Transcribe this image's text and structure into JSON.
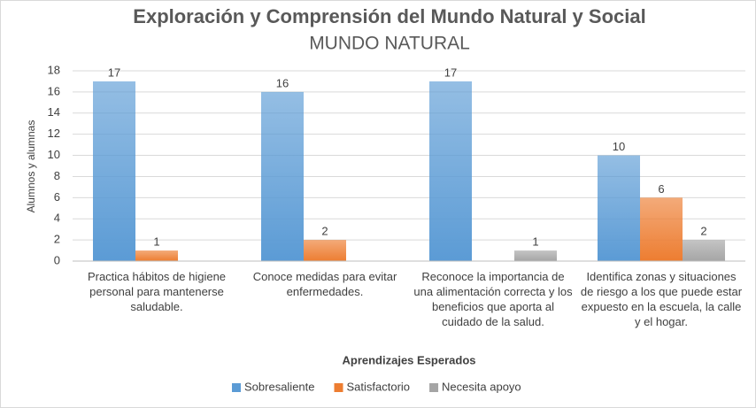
{
  "chart_data": {
    "type": "bar",
    "title": "Exploración y Comprensión del Mundo Natural y Social",
    "subtitle": "MUNDO NATURAL",
    "y_label": "Alumnos y alumnas",
    "x_label": "Aprendizajes Esperados",
    "categories": [
      "Practica hábitos de higiene personal para mantenerse saludable.",
      "Conoce medidas para evitar enfermedades.",
      "Reconoce la importancia de una alimentación correcta y los beneficios que aporta al cuidado de la salud.",
      "Identifica zonas y situaciones de riesgo a los que puede estar expuesto en la escuela, la calle y el hogar."
    ],
    "series": [
      {
        "name": "Sobresaliente",
        "color": "#5b9bd5",
        "values": [
          17,
          16,
          17,
          10
        ]
      },
      {
        "name": "Satisfactorio",
        "color": "#ed7d31",
        "values": [
          1,
          2,
          null,
          6
        ]
      },
      {
        "name": "Necesita apoyo",
        "color": "#a5a5a5",
        "values": [
          null,
          null,
          1,
          2
        ]
      }
    ],
    "ylim": [
      0,
      18
    ],
    "yticks": [
      0,
      2,
      4,
      6,
      8,
      10,
      12,
      14,
      16,
      18
    ],
    "grid": true,
    "legend": "bottom"
  }
}
